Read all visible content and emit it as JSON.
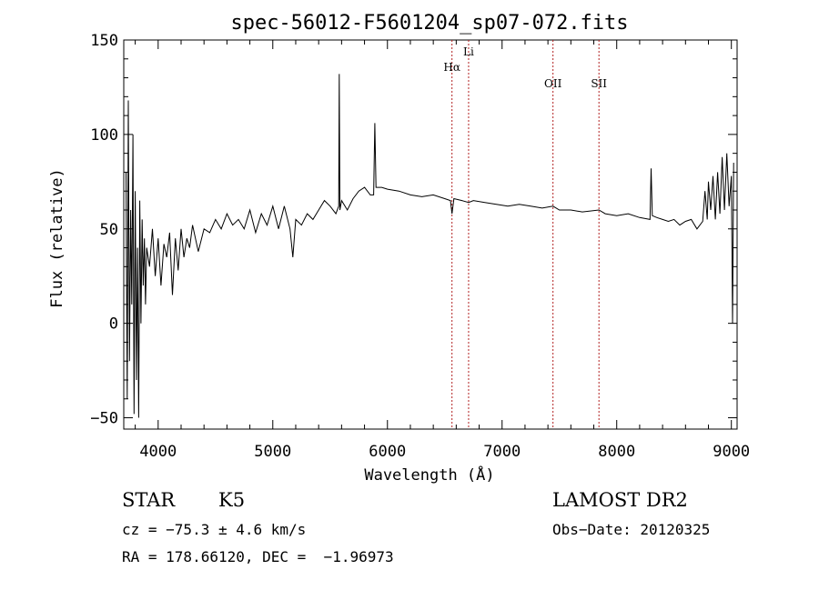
{
  "chart_data": {
    "type": "line",
    "title": "spec-56012-F5601204_sp07-072.fits",
    "xlabel": "Wavelength (Å)",
    "ylabel": "Flux (relative)",
    "xlim": [
      3700,
      9050
    ],
    "ylim": [
      -56,
      150
    ],
    "x_ticks": [
      4000,
      5000,
      6000,
      7000,
      8000,
      9000
    ],
    "y_ticks": [
      -50,
      0,
      50,
      100,
      150
    ],
    "grid": false,
    "line_color": "#000000",
    "marker_color": "#b22222",
    "lines": [
      {
        "name": "Hα",
        "wavelength": 6563
      },
      {
        "name": "Li",
        "wavelength": 6708
      },
      {
        "name": "OII",
        "wavelength": 7444
      },
      {
        "name": "SII",
        "wavelength": 7845
      }
    ],
    "series": [
      {
        "x": [
          3720,
          3730,
          3740,
          3750,
          3760,
          3770,
          3780,
          3790,
          3800,
          3810,
          3820,
          3830,
          3840,
          3850,
          3860,
          3870,
          3880,
          3890,
          3900,
          3925,
          3950,
          3975,
          4000,
          4025,
          4050,
          4075,
          4100,
          4125,
          4150,
          4175,
          4200,
          4225,
          4250,
          4275,
          4300,
          4350,
          4400,
          4450,
          4500,
          4550,
          4600,
          4650,
          4700,
          4750,
          4800,
          4850,
          4900,
          4950,
          5000,
          5050,
          5100,
          5150,
          5175,
          5200,
          5250,
          5300,
          5350,
          5400,
          5450,
          5500,
          5550,
          5575,
          5580,
          5585,
          5600,
          5650,
          5700,
          5750,
          5800,
          5850,
          5880,
          5890,
          5900,
          5950,
          6000,
          6100,
          6200,
          6300,
          6400,
          6500,
          6550,
          6563,
          6580,
          6650,
          6708,
          6750,
          6850,
          6950,
          7050,
          7150,
          7250,
          7350,
          7444,
          7500,
          7600,
          7700,
          7845,
          7900,
          8000,
          8100,
          8200,
          8290,
          8300,
          8310,
          8350,
          8400,
          8450,
          8500,
          8550,
          8600,
          8650,
          8700,
          8750,
          8770,
          8790,
          8800,
          8820,
          8840,
          8860,
          8880,
          8900,
          8920,
          8940,
          8960,
          8980,
          9000,
          9010,
          9020
        ],
        "y": [
          80,
          -40,
          118,
          -20,
          60,
          10,
          100,
          -48,
          70,
          -30,
          40,
          -50,
          65,
          0,
          55,
          20,
          45,
          10,
          40,
          30,
          50,
          25,
          45,
          20,
          42,
          35,
          48,
          15,
          45,
          28,
          50,
          35,
          45,
          40,
          52,
          38,
          50,
          48,
          55,
          50,
          58,
          52,
          55,
          50,
          60,
          48,
          58,
          52,
          62,
          50,
          62,
          50,
          35,
          55,
          52,
          58,
          55,
          60,
          65,
          62,
          58,
          62,
          132,
          60,
          65,
          60,
          66,
          70,
          72,
          68,
          68,
          106,
          72,
          72,
          71,
          70,
          68,
          67,
          68,
          66,
          65,
          58,
          66,
          65,
          64,
          65,
          64,
          63,
          62,
          63,
          62,
          61,
          62,
          60,
          60,
          59,
          60,
          58,
          57,
          58,
          56,
          55,
          82,
          57,
          56,
          55,
          54,
          55,
          52,
          54,
          55,
          50,
          54,
          70,
          55,
          75,
          60,
          78,
          55,
          80,
          58,
          88,
          60,
          90,
          62,
          78,
          0,
          85
        ]
      }
    ]
  },
  "info": {
    "classification": "STAR",
    "subclass": "K5",
    "survey": "LAMOST DR2",
    "cz": "cz = −75.3 ± 4.6 km/s",
    "obs_date": "Obs−Date: 20120325",
    "coords": "RA = 178.66120, DEC =  −1.96973"
  }
}
